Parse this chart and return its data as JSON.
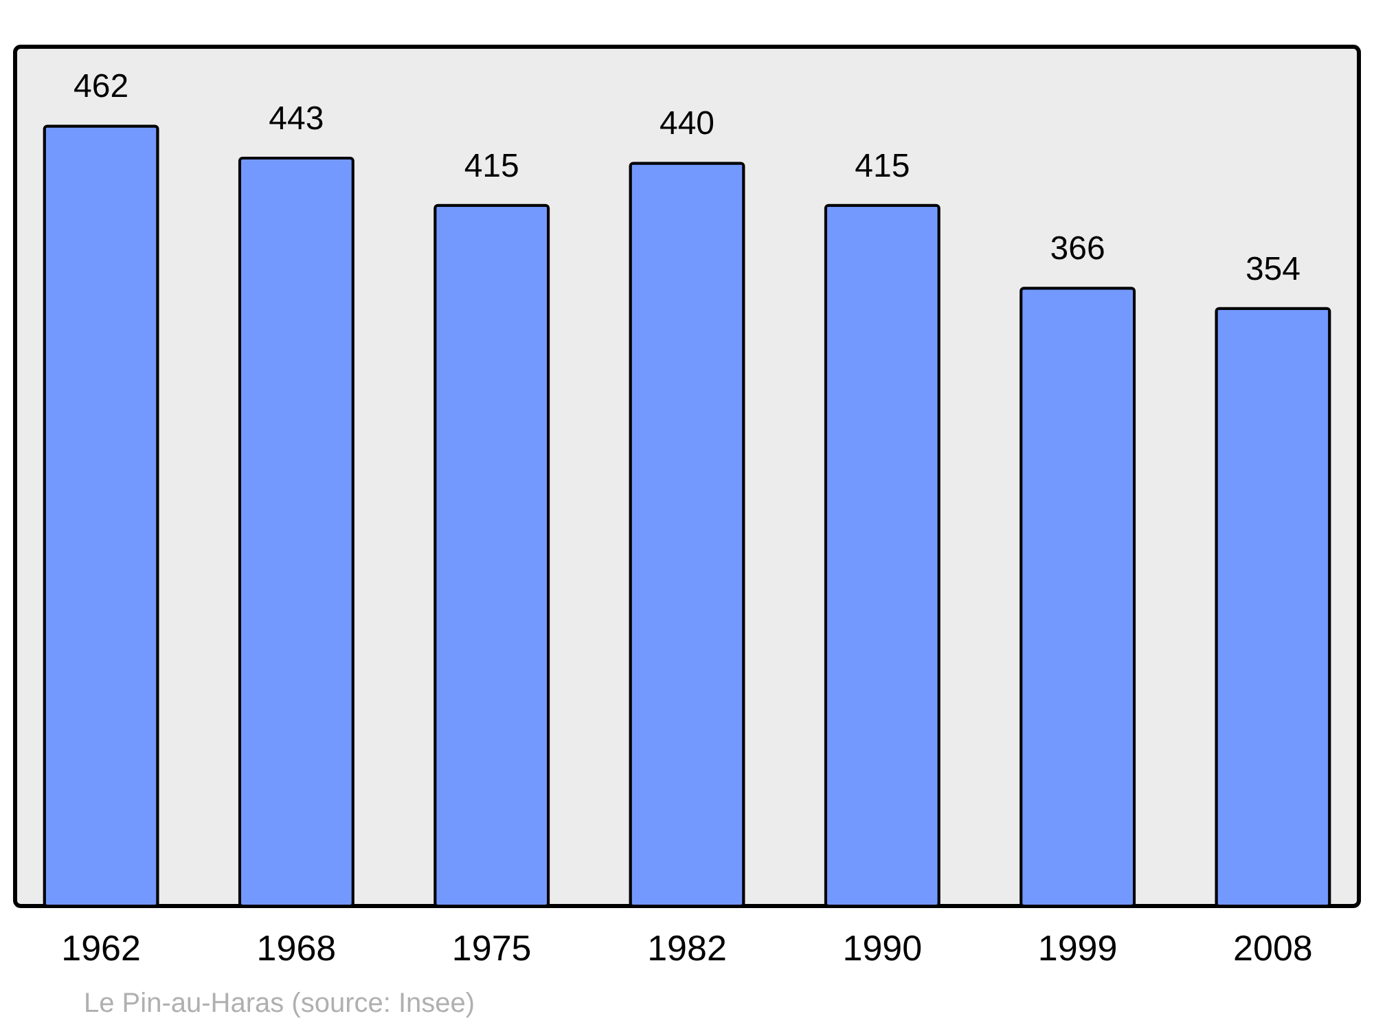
{
  "chart_data": {
    "type": "bar",
    "categories": [
      "1962",
      "1968",
      "1975",
      "1982",
      "1990",
      "1999",
      "2008"
    ],
    "values": [
      462,
      443,
      415,
      440,
      415,
      366,
      354
    ],
    "color": "#7399ff",
    "ylim": [
      0,
      509
    ],
    "tick_labels": "x",
    "data_labels": true,
    "annotations": [
      "Le Pin-au-Haras    (source: Insee)"
    ]
  }
}
